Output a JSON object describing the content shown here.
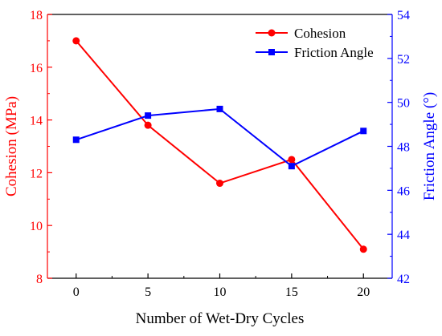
{
  "chart_data": {
    "type": "line",
    "x": [
      0,
      5,
      10,
      15,
      20
    ],
    "xlabel": "Number of Wet-Dry Cycles",
    "xlim": [
      -2,
      22
    ],
    "xticks": [
      0,
      5,
      10,
      15,
      20
    ],
    "grid": false,
    "legend_position": "top-right",
    "series": [
      {
        "name": "Cohesion",
        "axis": "left",
        "values": [
          17.0,
          13.8,
          11.6,
          12.5,
          9.1
        ],
        "color": "#ff0000",
        "marker": "circle"
      },
      {
        "name": "Friction Angle",
        "axis": "right",
        "values": [
          48.3,
          49.4,
          49.7,
          47.1,
          48.7
        ],
        "color": "#0000ff",
        "marker": "square"
      }
    ],
    "y_left": {
      "label": "Cohesion (MPa)",
      "ylim": [
        8,
        18
      ],
      "ticks": [
        8,
        10,
        12,
        14,
        16,
        18
      ],
      "color": "#ff0000"
    },
    "y_right": {
      "label": "Friction Angle (°)",
      "ylim": [
        42,
        54
      ],
      "ticks": [
        42,
        44,
        46,
        48,
        50,
        52,
        54
      ],
      "color": "#0000ff"
    }
  }
}
